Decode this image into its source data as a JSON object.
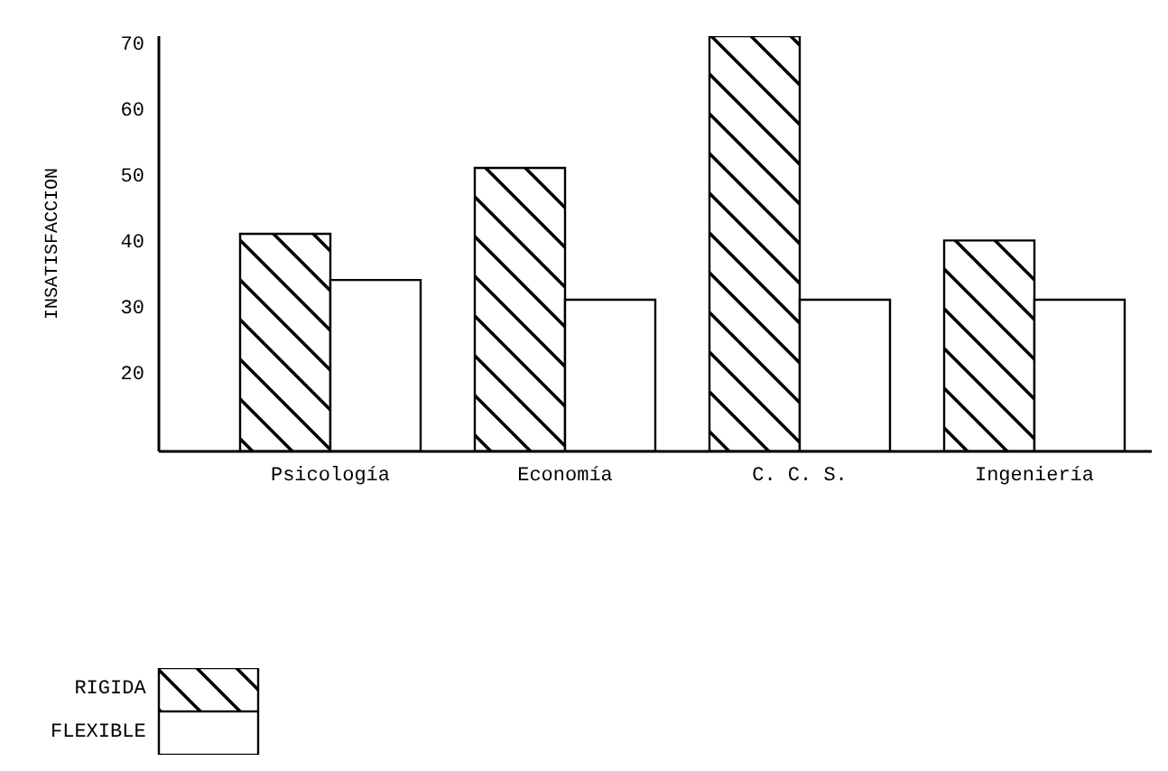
{
  "chart_data": {
    "type": "bar",
    "ylabel": "INSATISFACCION",
    "categories": [
      "Psicología",
      "Economía",
      "C. C. S.",
      "Ingeniería"
    ],
    "series": [
      {
        "name": "RIGIDA",
        "color": "#000000",
        "values": [
          41,
          51,
          71,
          40
        ]
      },
      {
        "name": "FLEXIBLE",
        "color": "#ffffff",
        "values": [
          34,
          31,
          31,
          31
        ]
      }
    ],
    "ylim": [
      8,
      71
    ],
    "yticks": [
      20,
      30,
      40,
      50,
      60,
      70
    ],
    "grid": false,
    "legend": "bottom left"
  }
}
